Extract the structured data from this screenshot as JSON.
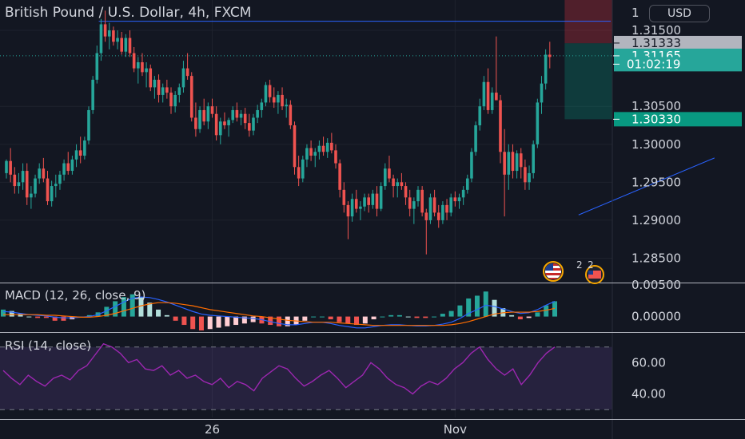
{
  "title": "British Pound / U.S. Dollar, 4h, FXCM",
  "currency_button": "USD",
  "colors": {
    "background": "#131722",
    "up": "#26a69a",
    "down": "#ef5350",
    "grid": "#1e222d",
    "trendline": "#2962ff",
    "macd_line": "#2962ff",
    "signal_line": "#ff6d00",
    "rsi_line": "#9c27b0"
  },
  "chart_data": [
    {
      "type": "candlestick",
      "title": "British Pound / U.S. Dollar, 4h, FXCM",
      "ylim": [
        1.282,
        1.319
      ],
      "y_ticks": [
        "1.31500",
        "1.30500",
        "1.30000",
        "1.29500",
        "1.29000",
        "1.28500"
      ],
      "y_tick_values": [
        1.315,
        1.305,
        1.3,
        1.295,
        1.29,
        1.285
      ],
      "top_partial_tick": "1",
      "x_ticks": [
        "26",
        "Nov"
      ],
      "x_tick_index": [
        50,
        109
      ],
      "price_labels": [
        {
          "value": 1.31333,
          "text": "1.31333",
          "kind": "gray"
        },
        {
          "value": 1.31165,
          "text": "1.31165",
          "kind": "green"
        },
        {
          "value": 1.31055,
          "text": "01:02:19",
          "kind": "green"
        },
        {
          "value": 1.3033,
          "text": "1.30330",
          "kind": "green-solid"
        }
      ],
      "horizontal_line": 1.3162,
      "dotted_line": 1.31165,
      "trendline": {
        "from": [
          139,
          1.2907
        ],
        "to": [
          172,
          1.2982
        ]
      },
      "position": {
        "start_index": 136,
        "entry": 1.3033,
        "target": 1.3133,
        "stop": 1.319
      },
      "candles": [
        [
          1.2962,
          1.298,
          1.2955,
          1.2978
        ],
        [
          1.2978,
          1.2995,
          1.295,
          1.296
        ],
        [
          1.296,
          1.297,
          1.2935,
          1.2945
        ],
        [
          1.2945,
          1.2962,
          1.2935,
          1.295
        ],
        [
          1.295,
          1.2975,
          1.294,
          1.2965
        ],
        [
          1.2965,
          1.2975,
          1.292,
          1.293
        ],
        [
          1.293,
          1.2945,
          1.2915,
          1.2935
        ],
        [
          1.2935,
          1.296,
          1.293,
          1.2955
        ],
        [
          1.2955,
          1.2975,
          1.2948,
          1.2968
        ],
        [
          1.2968,
          1.2982,
          1.295,
          1.2955
        ],
        [
          1.2955,
          1.2965,
          1.292,
          1.2925
        ],
        [
          1.2925,
          1.2952,
          1.2918,
          1.2945
        ],
        [
          1.2945,
          1.296,
          1.293,
          1.2948
        ],
        [
          1.2948,
          1.2965,
          1.294,
          1.296
        ],
        [
          1.296,
          1.298,
          1.2952,
          1.2975
        ],
        [
          1.2975,
          1.299,
          1.296,
          1.2965
        ],
        [
          1.2965,
          1.2985,
          1.296,
          1.298
        ],
        [
          1.298,
          1.3,
          1.297,
          1.2992
        ],
        [
          1.2992,
          1.301,
          1.2975,
          1.2985
        ],
        [
          1.2985,
          1.301,
          1.298,
          1.3005
        ],
        [
          1.3005,
          1.305,
          1.3,
          1.3045
        ],
        [
          1.3045,
          1.309,
          1.304,
          1.3085
        ],
        [
          1.3085,
          1.313,
          1.308,
          1.312
        ],
        [
          1.312,
          1.3165,
          1.311,
          1.3158
        ],
        [
          1.3158,
          1.3176,
          1.3135,
          1.3142
        ],
        [
          1.3142,
          1.316,
          1.3125,
          1.315
        ],
        [
          1.315,
          1.3155,
          1.313,
          1.3135
        ],
        [
          1.3135,
          1.315,
          1.3125,
          1.314
        ],
        [
          1.314,
          1.3148,
          1.3118,
          1.3122
        ],
        [
          1.3122,
          1.3145,
          1.3115,
          1.314
        ],
        [
          1.314,
          1.315,
          1.3115,
          1.312
        ],
        [
          1.312,
          1.3128,
          1.3095,
          1.31
        ],
        [
          1.31,
          1.3115,
          1.308,
          1.3108
        ],
        [
          1.3108,
          1.312,
          1.309,
          1.3095
        ],
        [
          1.3095,
          1.3108,
          1.3075,
          1.31
        ],
        [
          1.31,
          1.3105,
          1.307,
          1.3075
        ],
        [
          1.3075,
          1.309,
          1.306,
          1.3085
        ],
        [
          1.3085,
          1.3092,
          1.3055,
          1.3065
        ],
        [
          1.3065,
          1.308,
          1.3055,
          1.3075
        ],
        [
          1.3075,
          1.3085,
          1.306,
          1.3068
        ],
        [
          1.3068,
          1.3075,
          1.304,
          1.305
        ],
        [
          1.305,
          1.307,
          1.3042,
          1.3065
        ],
        [
          1.3065,
          1.308,
          1.3055,
          1.3075
        ],
        [
          1.3075,
          1.311,
          1.3068,
          1.31
        ],
        [
          1.31,
          1.312,
          1.3085,
          1.309
        ],
        [
          1.309,
          1.3095,
          1.303,
          1.3035
        ],
        [
          1.3035,
          1.3055,
          1.301,
          1.302
        ],
        [
          1.302,
          1.305,
          1.3015,
          1.3045
        ],
        [
          1.3045,
          1.306,
          1.3025,
          1.303
        ],
        [
          1.303,
          1.3055,
          1.302,
          1.305
        ],
        [
          1.305,
          1.306,
          1.3035,
          1.304
        ],
        [
          1.304,
          1.305,
          1.3005,
          1.3012
        ],
        [
          1.3012,
          1.3035,
          1.3,
          1.303
        ],
        [
          1.303,
          1.3042,
          1.302,
          1.3025
        ],
        [
          1.3025,
          1.3035,
          1.301,
          1.3032
        ],
        [
          1.3032,
          1.305,
          1.3028,
          1.3045
        ],
        [
          1.3045,
          1.3055,
          1.303,
          1.3035
        ],
        [
          1.3035,
          1.3045,
          1.3025,
          1.304
        ],
        [
          1.304,
          1.3048,
          1.302,
          1.3028
        ],
        [
          1.3028,
          1.304,
          1.301,
          1.3018
        ],
        [
          1.3018,
          1.304,
          1.3012,
          1.3035
        ],
        [
          1.3035,
          1.3052,
          1.3028,
          1.3045
        ],
        [
          1.3045,
          1.306,
          1.3035,
          1.3055
        ],
        [
          1.3055,
          1.3082,
          1.305,
          1.3078
        ],
        [
          1.3078,
          1.3085,
          1.3055,
          1.3062
        ],
        [
          1.3062,
          1.3075,
          1.3048,
          1.3055
        ],
        [
          1.3055,
          1.307,
          1.304,
          1.3065
        ],
        [
          1.3065,
          1.3075,
          1.3045,
          1.305
        ],
        [
          1.305,
          1.306,
          1.3035,
          1.3052
        ],
        [
          1.3052,
          1.3058,
          1.302,
          1.3025
        ],
        [
          1.3025,
          1.303,
          1.296,
          1.297
        ],
        [
          1.297,
          1.2985,
          1.2945,
          1.2955
        ],
        [
          1.2955,
          1.2985,
          1.295,
          1.298
        ],
        [
          1.298,
          1.3,
          1.297,
          1.2995
        ],
        [
          1.2995,
          1.3005,
          1.2978,
          1.2985
        ],
        [
          1.2985,
          1.2995,
          1.297,
          1.299
        ],
        [
          1.299,
          1.3005,
          1.298,
          1.2998
        ],
        [
          1.2998,
          1.301,
          1.2985,
          1.299
        ],
        [
          1.299,
          1.3008,
          1.2982,
          1.3002
        ],
        [
          1.3002,
          1.3015,
          1.2988,
          1.2992
        ],
        [
          1.2992,
          1.3,
          1.2968,
          1.2975
        ],
        [
          1.2975,
          1.298,
          1.293,
          1.294
        ],
        [
          1.294,
          1.295,
          1.291,
          1.292
        ],
        [
          1.292,
          1.2925,
          1.2875,
          1.2905
        ],
        [
          1.2905,
          1.2935,
          1.2898,
          1.2928
        ],
        [
          1.2928,
          1.294,
          1.291,
          1.2915
        ],
        [
          1.2915,
          1.2925,
          1.29,
          1.2918
        ],
        [
          1.2918,
          1.2935,
          1.2912,
          1.293
        ],
        [
          1.293,
          1.2935,
          1.291,
          1.292
        ],
        [
          1.292,
          1.294,
          1.2915,
          1.2935
        ],
        [
          1.2935,
          1.2945,
          1.2905,
          1.2915
        ],
        [
          1.2915,
          1.295,
          1.2912,
          1.2945
        ],
        [
          1.2945,
          1.2975,
          1.294,
          1.2968
        ],
        [
          1.2968,
          1.2985,
          1.295,
          1.2955
        ],
        [
          1.2955,
          1.296,
          1.293,
          1.2945
        ],
        [
          1.2945,
          1.2955,
          1.293,
          1.295
        ],
        [
          1.295,
          1.2962,
          1.294,
          1.2945
        ],
        [
          1.2945,
          1.295,
          1.292,
          1.293
        ],
        [
          1.293,
          1.294,
          1.2905,
          1.2915
        ],
        [
          1.2915,
          1.293,
          1.2895,
          1.2925
        ],
        [
          1.2925,
          1.2945,
          1.2918,
          1.294
        ],
        [
          1.294,
          1.2945,
          1.2905,
          1.291
        ],
        [
          1.291,
          1.2915,
          1.2855,
          1.29
        ],
        [
          1.29,
          1.2935,
          1.2895,
          1.293
        ],
        [
          1.293,
          1.294,
          1.2905,
          1.291
        ],
        [
          1.291,
          1.292,
          1.289,
          1.29
        ],
        [
          1.29,
          1.2925,
          1.2895,
          1.292
        ],
        [
          1.292,
          1.2928,
          1.29,
          1.291
        ],
        [
          1.291,
          1.2935,
          1.2905,
          1.293
        ],
        [
          1.293,
          1.2938,
          1.2918,
          1.2925
        ],
        [
          1.2925,
          1.2935,
          1.2915,
          1.293
        ],
        [
          1.293,
          1.2945,
          1.292,
          1.294
        ],
        [
          1.294,
          1.296,
          1.2935,
          1.2955
        ],
        [
          1.2955,
          1.2995,
          1.295,
          1.299
        ],
        [
          1.299,
          1.303,
          1.2985,
          1.3025
        ],
        [
          1.3025,
          1.306,
          1.3018,
          1.305
        ],
        [
          1.305,
          1.309,
          1.3045,
          1.3082
        ],
        [
          1.3082,
          1.31,
          1.304,
          1.3045
        ],
        [
          1.3045,
          1.3075,
          1.304,
          1.3068
        ],
        [
          1.3068,
          1.3142,
          1.306,
          1.3058
        ],
        [
          1.3058,
          1.3065,
          1.2975,
          1.299
        ],
        [
          1.299,
          1.302,
          1.2905,
          1.296
        ],
        [
          1.296,
          1.3,
          1.294,
          1.299
        ],
        [
          1.299,
          1.3,
          1.2955,
          1.2965
        ],
        [
          1.2965,
          1.2992,
          1.2955,
          1.2988
        ],
        [
          1.2988,
          1.2995,
          1.2955,
          1.297
        ],
        [
          1.297,
          1.298,
          1.294,
          1.295
        ],
        [
          1.295,
          1.2972,
          1.294,
          1.2962
        ],
        [
          1.2962,
          1.3005,
          1.2955,
          1.3
        ],
        [
          1.3,
          1.306,
          1.2995,
          1.3055
        ],
        [
          1.3055,
          1.309,
          1.304,
          1.308
        ],
        [
          1.308,
          1.3125,
          1.3072,
          1.3118
        ],
        [
          1.3118,
          1.3135,
          1.31,
          1.3115
        ]
      ]
    },
    {
      "type": "macd",
      "label": "MACD (12, 26, close, 9)",
      "ylim": [
        -0.0022,
        0.005
      ],
      "y_ticks": [
        "0.00500",
        "0.00000"
      ],
      "y_tick_values": [
        0.005,
        0.0
      ],
      "macd": [
        0.0008,
        0.0007,
        0.0005,
        0.0003,
        0.0002,
        0.0001,
        -0.0001,
        -0.0002,
        -0.0002,
        -0.0001,
        0.0,
        0.0003,
        0.0009,
        0.0016,
        0.0023,
        0.0029,
        0.0031,
        0.003,
        0.0027,
        0.0023,
        0.0018,
        0.0013,
        0.0008,
        0.0004,
        0.0002,
        0.0001,
        0.0,
        -0.0001,
        -0.0002,
        -0.0003,
        -0.0005,
        -0.0008,
        -0.0011,
        -0.0013,
        -0.0013,
        -0.0011,
        -0.0009,
        -0.0009,
        -0.0011,
        -0.0014,
        -0.0016,
        -0.0018,
        -0.0018,
        -0.0016,
        -0.0014,
        -0.0013,
        -0.0013,
        -0.0014,
        -0.0015,
        -0.0015,
        -0.0014,
        -0.0012,
        -0.0009,
        -0.0003,
        0.0005,
        0.0011,
        0.0018,
        0.0016,
        0.0012,
        0.0008,
        0.0005,
        0.0006,
        0.0011,
        0.0018,
        0.0024
      ],
      "signal": [
        0.0003,
        0.0003,
        0.0003,
        0.0003,
        0.0003,
        0.0002,
        0.0002,
        0.0001,
        0.0,
        -0.0001,
        -0.0001,
        0.0,
        0.0002,
        0.0005,
        0.0009,
        0.0013,
        0.0017,
        0.002,
        0.0022,
        0.0022,
        0.0021,
        0.0019,
        0.0017,
        0.0014,
        0.0011,
        0.0009,
        0.0007,
        0.0005,
        0.0003,
        0.0001,
        0.0,
        -0.0002,
        -0.0004,
        -0.0006,
        -0.0007,
        -0.0008,
        -0.0009,
        -0.0009,
        -0.0009,
        -0.001,
        -0.0011,
        -0.0012,
        -0.0013,
        -0.0014,
        -0.0014,
        -0.0014,
        -0.0014,
        -0.0014,
        -0.0014,
        -0.0014,
        -0.0014,
        -0.0014,
        -0.0013,
        -0.0011,
        -0.0008,
        -0.0004,
        0.0,
        0.0004,
        0.0006,
        0.0007,
        0.0007,
        0.0007,
        0.0008,
        0.001,
        0.0013
      ]
    },
    {
      "type": "rsi",
      "label": "RSI (14, close)",
      "ylim": [
        25,
        78
      ],
      "y_ticks": [
        "60.00",
        "40.00"
      ],
      "y_tick_values": [
        60,
        40
      ],
      "bands": [
        70,
        30
      ],
      "values": [
        55,
        50,
        46,
        52,
        48,
        45,
        50,
        52,
        49,
        55,
        58,
        65,
        72,
        70,
        66,
        60,
        62,
        56,
        55,
        58,
        52,
        55,
        50,
        52,
        48,
        46,
        50,
        44,
        48,
        46,
        42,
        50,
        54,
        58,
        56,
        50,
        45,
        48,
        52,
        55,
        50,
        44,
        48,
        52,
        60,
        56,
        50,
        46,
        44,
        40,
        45,
        48,
        46,
        50,
        56,
        60,
        66,
        70,
        62,
        56,
        52,
        56,
        46,
        52,
        60,
        66,
        70
      ]
    },
    {
      "type": "events",
      "labels": [
        "2",
        "2"
      ]
    }
  ],
  "icons": [
    "us-flag-icon",
    "calendar-event-icon"
  ]
}
